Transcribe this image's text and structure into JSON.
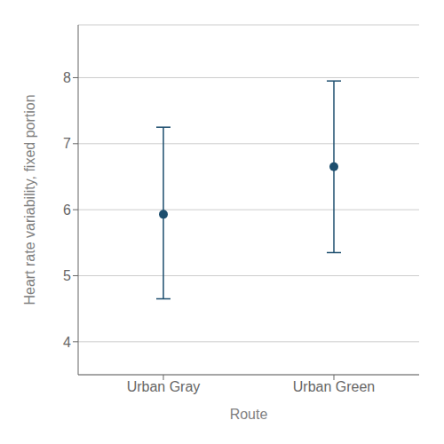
{
  "chart_data": {
    "type": "scatter",
    "categories": [
      "Urban Gray",
      "Urban Green"
    ],
    "values": [
      5.93,
      6.65
    ],
    "ci_lower": [
      4.65,
      5.35
    ],
    "ci_upper": [
      7.25,
      7.95
    ],
    "color": "#1d4e6e",
    "xlabel": "Route",
    "ylabel": "Heart rate variability, fixed portion",
    "ylim": [
      3.5,
      8.8
    ],
    "yticks": [
      4,
      5,
      6,
      7,
      8
    ],
    "grid": true
  }
}
